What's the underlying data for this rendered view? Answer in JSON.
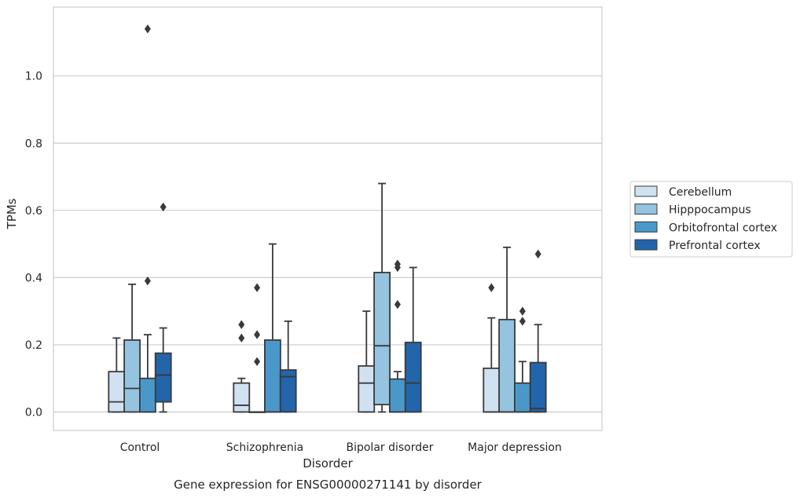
{
  "chart_data": {
    "type": "boxplot",
    "title": "",
    "caption": "Gene expression for ENSG00000271141 by disorder",
    "xlabel": "Disorder",
    "ylabel": "TPMs",
    "ylim": [
      -0.055,
      1.205
    ],
    "yticks": [
      0.0,
      0.2,
      0.4,
      0.6,
      0.8,
      1.0
    ],
    "ytick_labels": [
      "0.0",
      "0.2",
      "0.4",
      "0.6",
      "0.8",
      "1.0"
    ],
    "grid": "horizontal",
    "legend_position": "right",
    "categories": [
      "Control",
      "Schizophrenia",
      "Bipolar disorder",
      "Major depression"
    ],
    "series": [
      {
        "name": "Cerebellum",
        "color": "#d0e1f2",
        "boxes": [
          {
            "q1": 0.0,
            "median": 0.03,
            "q3": 0.12,
            "whisker_low": 0.0,
            "whisker_high": 0.22,
            "outliers": []
          },
          {
            "q1": 0.0,
            "median": 0.02,
            "q3": 0.086,
            "whisker_low": 0.0,
            "whisker_high": 0.1,
            "outliers": [
              0.26,
              0.22
            ]
          },
          {
            "q1": 0.0,
            "median": 0.086,
            "q3": 0.137,
            "whisker_low": 0.0,
            "whisker_high": 0.3,
            "outliers": []
          },
          {
            "q1": 0.0,
            "median": 0.0,
            "q3": 0.13,
            "whisker_low": 0.0,
            "whisker_high": 0.28,
            "outliers": [
              0.37
            ]
          }
        ]
      },
      {
        "name": "Hipppocampus",
        "color": "#94c4df",
        "boxes": [
          {
            "q1": 0.0,
            "median": 0.07,
            "q3": 0.214,
            "whisker_low": 0.0,
            "whisker_high": 0.38,
            "outliers": []
          },
          {
            "q1": 0.0,
            "median": 0.0,
            "q3": 0.0,
            "whisker_low": 0.0,
            "whisker_high": 0.0,
            "outliers": [
              0.37,
              0.23,
              0.15
            ]
          },
          {
            "q1": 0.022,
            "median": 0.197,
            "q3": 0.415,
            "whisker_low": 0.0,
            "whisker_high": 0.68,
            "outliers": []
          },
          {
            "q1": 0.0,
            "median": 0.0,
            "q3": 0.275,
            "whisker_low": 0.0,
            "whisker_high": 0.49,
            "outliers": []
          }
        ]
      },
      {
        "name": "Orbitofrontal cortex",
        "color": "#4a98c9",
        "boxes": [
          {
            "q1": 0.0,
            "median": 0.0,
            "q3": 0.1,
            "whisker_low": 0.0,
            "whisker_high": 0.23,
            "outliers": [
              1.14,
              0.39
            ]
          },
          {
            "q1": 0.0,
            "median": 0.0,
            "q3": 0.214,
            "whisker_low": 0.0,
            "whisker_high": 0.5,
            "outliers": []
          },
          {
            "q1": 0.0,
            "median": 0.0,
            "q3": 0.098,
            "whisker_low": 0.0,
            "whisker_high": 0.12,
            "outliers": [
              0.44,
              0.43,
              0.32
            ]
          },
          {
            "q1": 0.0,
            "median": 0.0,
            "q3": 0.086,
            "whisker_low": 0.0,
            "whisker_high": 0.15,
            "outliers": [
              0.3,
              0.27
            ]
          }
        ]
      },
      {
        "name": "Prefrontal cortex",
        "color": "#2265ab",
        "boxes": [
          {
            "q1": 0.03,
            "median": 0.11,
            "q3": 0.175,
            "whisker_low": 0.0,
            "whisker_high": 0.25,
            "outliers": [
              0.61
            ]
          },
          {
            "q1": 0.0,
            "median": 0.105,
            "q3": 0.125,
            "whisker_low": 0.0,
            "whisker_high": 0.27,
            "outliers": []
          },
          {
            "q1": 0.0,
            "median": 0.086,
            "q3": 0.207,
            "whisker_low": 0.0,
            "whisker_high": 0.43,
            "outliers": []
          },
          {
            "q1": 0.0,
            "median": 0.01,
            "q3": 0.147,
            "whisker_low": 0.0,
            "whisker_high": 0.26,
            "outliers": [
              0.47
            ]
          }
        ]
      }
    ]
  }
}
